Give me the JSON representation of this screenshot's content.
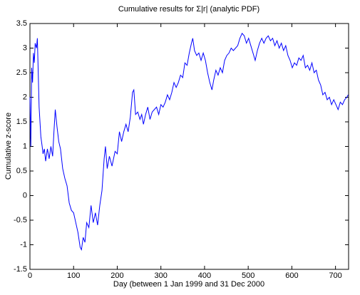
{
  "chart_data": {
    "type": "line",
    "title": "Cumulative results for Σ|r| (analytic PDF)",
    "x_label": "Day (between 1 Jan 1999 and 31 Dec 2000",
    "y_label": "Cumulative z-score",
    "color": "#0000ff",
    "xlim": [
      0,
      730
    ],
    "xticks": [
      0,
      100,
      200,
      300,
      400,
      500,
      600,
      700
    ],
    "ylim": [
      -1.5,
      3.5
    ],
    "yticks": [
      -1.5,
      -1,
      -0.5,
      0,
      0.5,
      1,
      1.5,
      2,
      2.5,
      3,
      3.5
    ],
    "x": [
      0,
      2,
      4,
      6,
      8,
      10,
      12,
      15,
      17,
      19,
      21,
      23,
      25,
      28,
      30,
      33,
      36,
      40,
      44,
      48,
      52,
      55,
      58,
      62,
      66,
      70,
      75,
      80,
      85,
      90,
      95,
      100,
      105,
      110,
      115,
      118,
      122,
      126,
      130,
      135,
      140,
      145,
      150,
      155,
      160,
      165,
      170,
      173,
      177,
      182,
      188,
      195,
      200,
      205,
      210,
      215,
      220,
      225,
      230,
      235,
      238,
      242,
      247,
      252,
      256,
      260,
      265,
      270,
      275,
      280,
      285,
      290,
      295,
      300,
      305,
      310,
      315,
      320,
      325,
      330,
      335,
      340,
      345,
      350,
      355,
      360,
      365,
      370,
      373,
      377,
      382,
      387,
      392,
      397,
      402,
      407,
      412,
      417,
      421,
      426,
      431,
      436,
      441,
      446,
      451,
      456,
      461,
      466,
      471,
      476,
      481,
      486,
      491,
      496,
      501,
      506,
      511,
      516,
      521,
      526,
      531,
      536,
      541,
      546,
      551,
      556,
      561,
      566,
      571,
      576,
      581,
      586,
      591,
      596,
      601,
      606,
      611,
      616,
      621,
      626,
      631,
      636,
      641,
      646,
      651,
      656,
      661,
      666,
      671,
      676,
      681,
      686,
      691,
      696,
      701,
      706,
      711,
      716,
      721,
      726,
      729
    ],
    "values": [
      2.0,
      1.0,
      2.6,
      2.3,
      2.9,
      2.7,
      3.1,
      3.0,
      3.2,
      2.5,
      1.8,
      1.5,
      1.2,
      1.0,
      0.85,
      0.95,
      0.7,
      0.95,
      0.75,
      1.0,
      0.8,
      1.3,
      1.75,
      1.4,
      1.1,
      0.95,
      0.55,
      0.35,
      0.2,
      -0.15,
      -0.3,
      -0.35,
      -0.55,
      -0.75,
      -1.05,
      -1.1,
      -0.85,
      -0.95,
      -0.55,
      -0.65,
      -0.2,
      -0.55,
      -0.35,
      -0.6,
      -0.2,
      0.1,
      0.75,
      1.0,
      0.55,
      0.8,
      0.6,
      0.9,
      0.85,
      1.3,
      1.1,
      1.3,
      1.45,
      1.3,
      1.6,
      2.1,
      2.15,
      1.65,
      1.7,
      1.55,
      1.65,
      1.45,
      1.65,
      1.8,
      1.55,
      1.7,
      1.75,
      1.8,
      1.65,
      1.85,
      1.8,
      1.9,
      2.05,
      1.95,
      2.1,
      2.3,
      2.2,
      2.3,
      2.45,
      2.4,
      2.7,
      2.65,
      2.9,
      3.1,
      3.2,
      2.95,
      2.85,
      2.9,
      2.75,
      2.9,
      2.75,
      2.5,
      2.3,
      2.15,
      2.35,
      2.55,
      2.45,
      2.6,
      2.5,
      2.75,
      2.85,
      2.9,
      3.0,
      2.95,
      3.0,
      3.05,
      3.2,
      3.3,
      3.25,
      3.1,
      3.2,
      3.05,
      2.9,
      2.75,
      2.95,
      3.1,
      3.2,
      3.1,
      3.2,
      3.25,
      3.15,
      3.2,
      3.05,
      3.15,
      3.0,
      3.1,
      2.95,
      3.05,
      2.85,
      2.75,
      2.6,
      2.7,
      2.65,
      2.8,
      2.75,
      2.85,
      2.6,
      2.65,
      2.55,
      2.7,
      2.5,
      2.55,
      2.35,
      2.25,
      2.05,
      2.1,
      1.95,
      2.0,
      1.85,
      1.95,
      1.85,
      1.75,
      1.9,
      1.85,
      1.95,
      2.0,
      2.05
    ]
  }
}
